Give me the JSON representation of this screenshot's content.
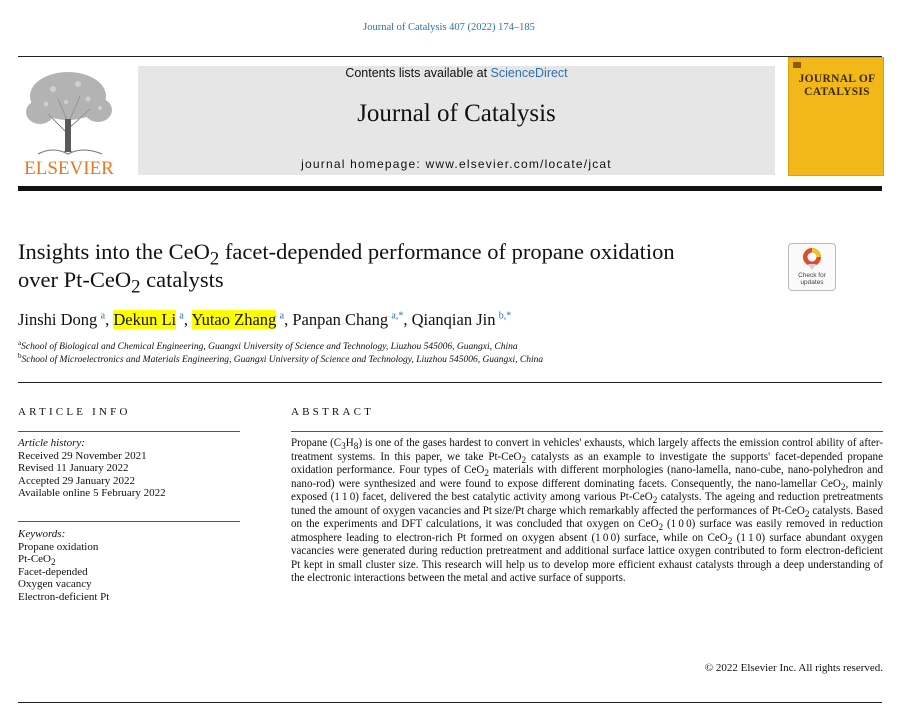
{
  "header": {
    "citation": "Journal of Catalysis 407 (2022) 174–185",
    "contents_prefix": "Contents lists available at ",
    "contents_link": "ScienceDirect",
    "journal_name": "Journal of Catalysis",
    "homepage": "journal homepage: www.elsevier.com/locate/jcat",
    "publisher_logo_text": "ELSEVIER",
    "cover_title": "JOURNAL OF CATALYSIS",
    "colors": {
      "link": "#2f6fb3",
      "elsevier_orange": "#e87722",
      "cover": "#f2b81a",
      "highlight": "#ffff00"
    }
  },
  "article": {
    "title_part1": "Insights into the CeO",
    "title_sub1": "2",
    "title_part2": " facet-depended performance of propane oxidation",
    "title_part3": "over Pt-CeO",
    "title_sub2": "2",
    "title_part4": " catalysts",
    "check_updates_label": "Check for updates",
    "authors": [
      {
        "name": "Jinshi Dong",
        "sup": "a",
        "highlighted": false
      },
      {
        "name": "Dekun Li",
        "sup": "a",
        "highlighted": true
      },
      {
        "name": "Yutao Zhang",
        "sup": "a",
        "highlighted": true
      },
      {
        "name": "Panpan Chang",
        "sup": "a,*",
        "highlighted": false
      },
      {
        "name": "Qianqian Jin",
        "sup": "b,*",
        "highlighted": false
      }
    ],
    "affiliations": [
      {
        "sup": "a",
        "text": "School of Biological and Chemical Engineering, Guangxi University of Science and Technology, Liuzhou 545006, Guangxi, China"
      },
      {
        "sup": "b",
        "text": "School of Microelectronics and Materials Engineering, Guangxi University of Science and Technology, Liuzhou 545006, Guangxi, China"
      }
    ]
  },
  "article_info": {
    "heading": "ARTICLE INFO",
    "history_label": "Article history:",
    "history": [
      "Received 29 November 2021",
      "Revised 11 January 2022",
      "Accepted 29 January 2022",
      "Available online 5 February 2022"
    ],
    "keywords_label": "Keywords:",
    "keywords": [
      "Propane oxidation",
      "Pt-CeO2",
      "Facet-depended",
      "Oxygen vacancy",
      "Electron-deficient Pt"
    ]
  },
  "abstract": {
    "heading": "ABSTRACT",
    "copyright": "© 2022 Elsevier Inc. All rights reserved."
  }
}
